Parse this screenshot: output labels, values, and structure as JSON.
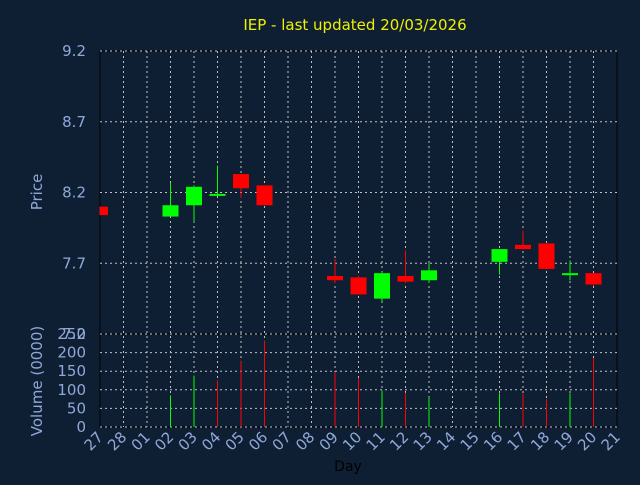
{
  "chart_data": {
    "type": "candlestick",
    "title": "IEP - last updated 20/03/2026",
    "ylabel": "Price",
    "volume_ylabel": "Volume (0000)",
    "xlabel": "Day",
    "ylim": [
      7.2,
      9.2
    ],
    "yticks": [
      "9.2",
      "8.7",
      "8.2",
      "7.7",
      "7.2"
    ],
    "volume_ylim": [
      0,
      250
    ],
    "volume_yticks": [
      "250",
      "200",
      "150",
      "100",
      "50",
      "0"
    ],
    "x_ticks": [
      "27",
      "28",
      "01",
      "02",
      "03",
      "04",
      "05",
      "06",
      "07",
      "08",
      "09",
      "10",
      "11",
      "12",
      "13",
      "14",
      "15",
      "16",
      "17",
      "18",
      "19",
      "20",
      "21"
    ],
    "colors": {
      "up": "#00ff00",
      "down": "#ff0000",
      "title": "#f0f000",
      "axis": "#8fa8d8"
    },
    "candles": [
      {
        "day": "27",
        "open": 8.1,
        "close": 8.04,
        "high": 8.1,
        "low": 8.04
      },
      {
        "day": "02",
        "open": 8.03,
        "close": 8.11,
        "high": 8.27,
        "low": 8.03
      },
      {
        "day": "03",
        "open": 8.11,
        "close": 8.24,
        "high": 8.25,
        "low": 7.99
      },
      {
        "day": "04",
        "open": 8.19,
        "close": 8.19,
        "high": 8.39,
        "low": 8.19
      },
      {
        "day": "05",
        "open": 8.33,
        "close": 8.23,
        "high": 8.33,
        "low": 8.16
      },
      {
        "day": "06",
        "open": 8.25,
        "close": 8.11,
        "high": 8.25,
        "low": 8.11
      },
      {
        "day": "09",
        "open": 7.61,
        "close": 7.58,
        "high": 7.73,
        "low": 7.56
      },
      {
        "day": "10",
        "open": 7.6,
        "close": 7.48,
        "high": 7.61,
        "low": 7.48
      },
      {
        "day": "11",
        "open": 7.45,
        "close": 7.63,
        "high": 7.64,
        "low": 7.43
      },
      {
        "day": "12",
        "open": 7.61,
        "close": 7.57,
        "high": 7.79,
        "low": 7.56
      },
      {
        "day": "13",
        "open": 7.58,
        "close": 7.65,
        "high": 7.7,
        "low": 7.56
      },
      {
        "day": "16",
        "open": 7.71,
        "close": 7.8,
        "high": 7.8,
        "low": 7.62
      },
      {
        "day": "17",
        "open": 7.83,
        "close": 7.8,
        "high": 7.93,
        "low": 7.8
      },
      {
        "day": "18",
        "open": 7.84,
        "close": 7.66,
        "high": 7.84,
        "low": 7.66
      },
      {
        "day": "19",
        "open": 7.62,
        "close": 7.63,
        "high": 7.72,
        "low": 7.58
      },
      {
        "day": "20",
        "open": 7.63,
        "close": 7.55,
        "high": 7.63,
        "low": 7.54
      }
    ],
    "volumes": [
      {
        "day": "02",
        "value": 85,
        "dir": "up"
      },
      {
        "day": "03",
        "value": 138,
        "dir": "up"
      },
      {
        "day": "04",
        "value": 125,
        "dir": "down"
      },
      {
        "day": "05",
        "value": 178,
        "dir": "down"
      },
      {
        "day": "06",
        "value": 232,
        "dir": "down"
      },
      {
        "day": "09",
        "value": 148,
        "dir": "down"
      },
      {
        "day": "10",
        "value": 132,
        "dir": "down"
      },
      {
        "day": "11",
        "value": 98,
        "dir": "up"
      },
      {
        "day": "12",
        "value": 92,
        "dir": "down"
      },
      {
        "day": "13",
        "value": 80,
        "dir": "up"
      },
      {
        "day": "16",
        "value": 90,
        "dir": "up"
      },
      {
        "day": "17",
        "value": 90,
        "dir": "down"
      },
      {
        "day": "18",
        "value": 75,
        "dir": "down"
      },
      {
        "day": "19",
        "value": 90,
        "dir": "up"
      },
      {
        "day": "20",
        "value": 185,
        "dir": "down"
      }
    ]
  }
}
